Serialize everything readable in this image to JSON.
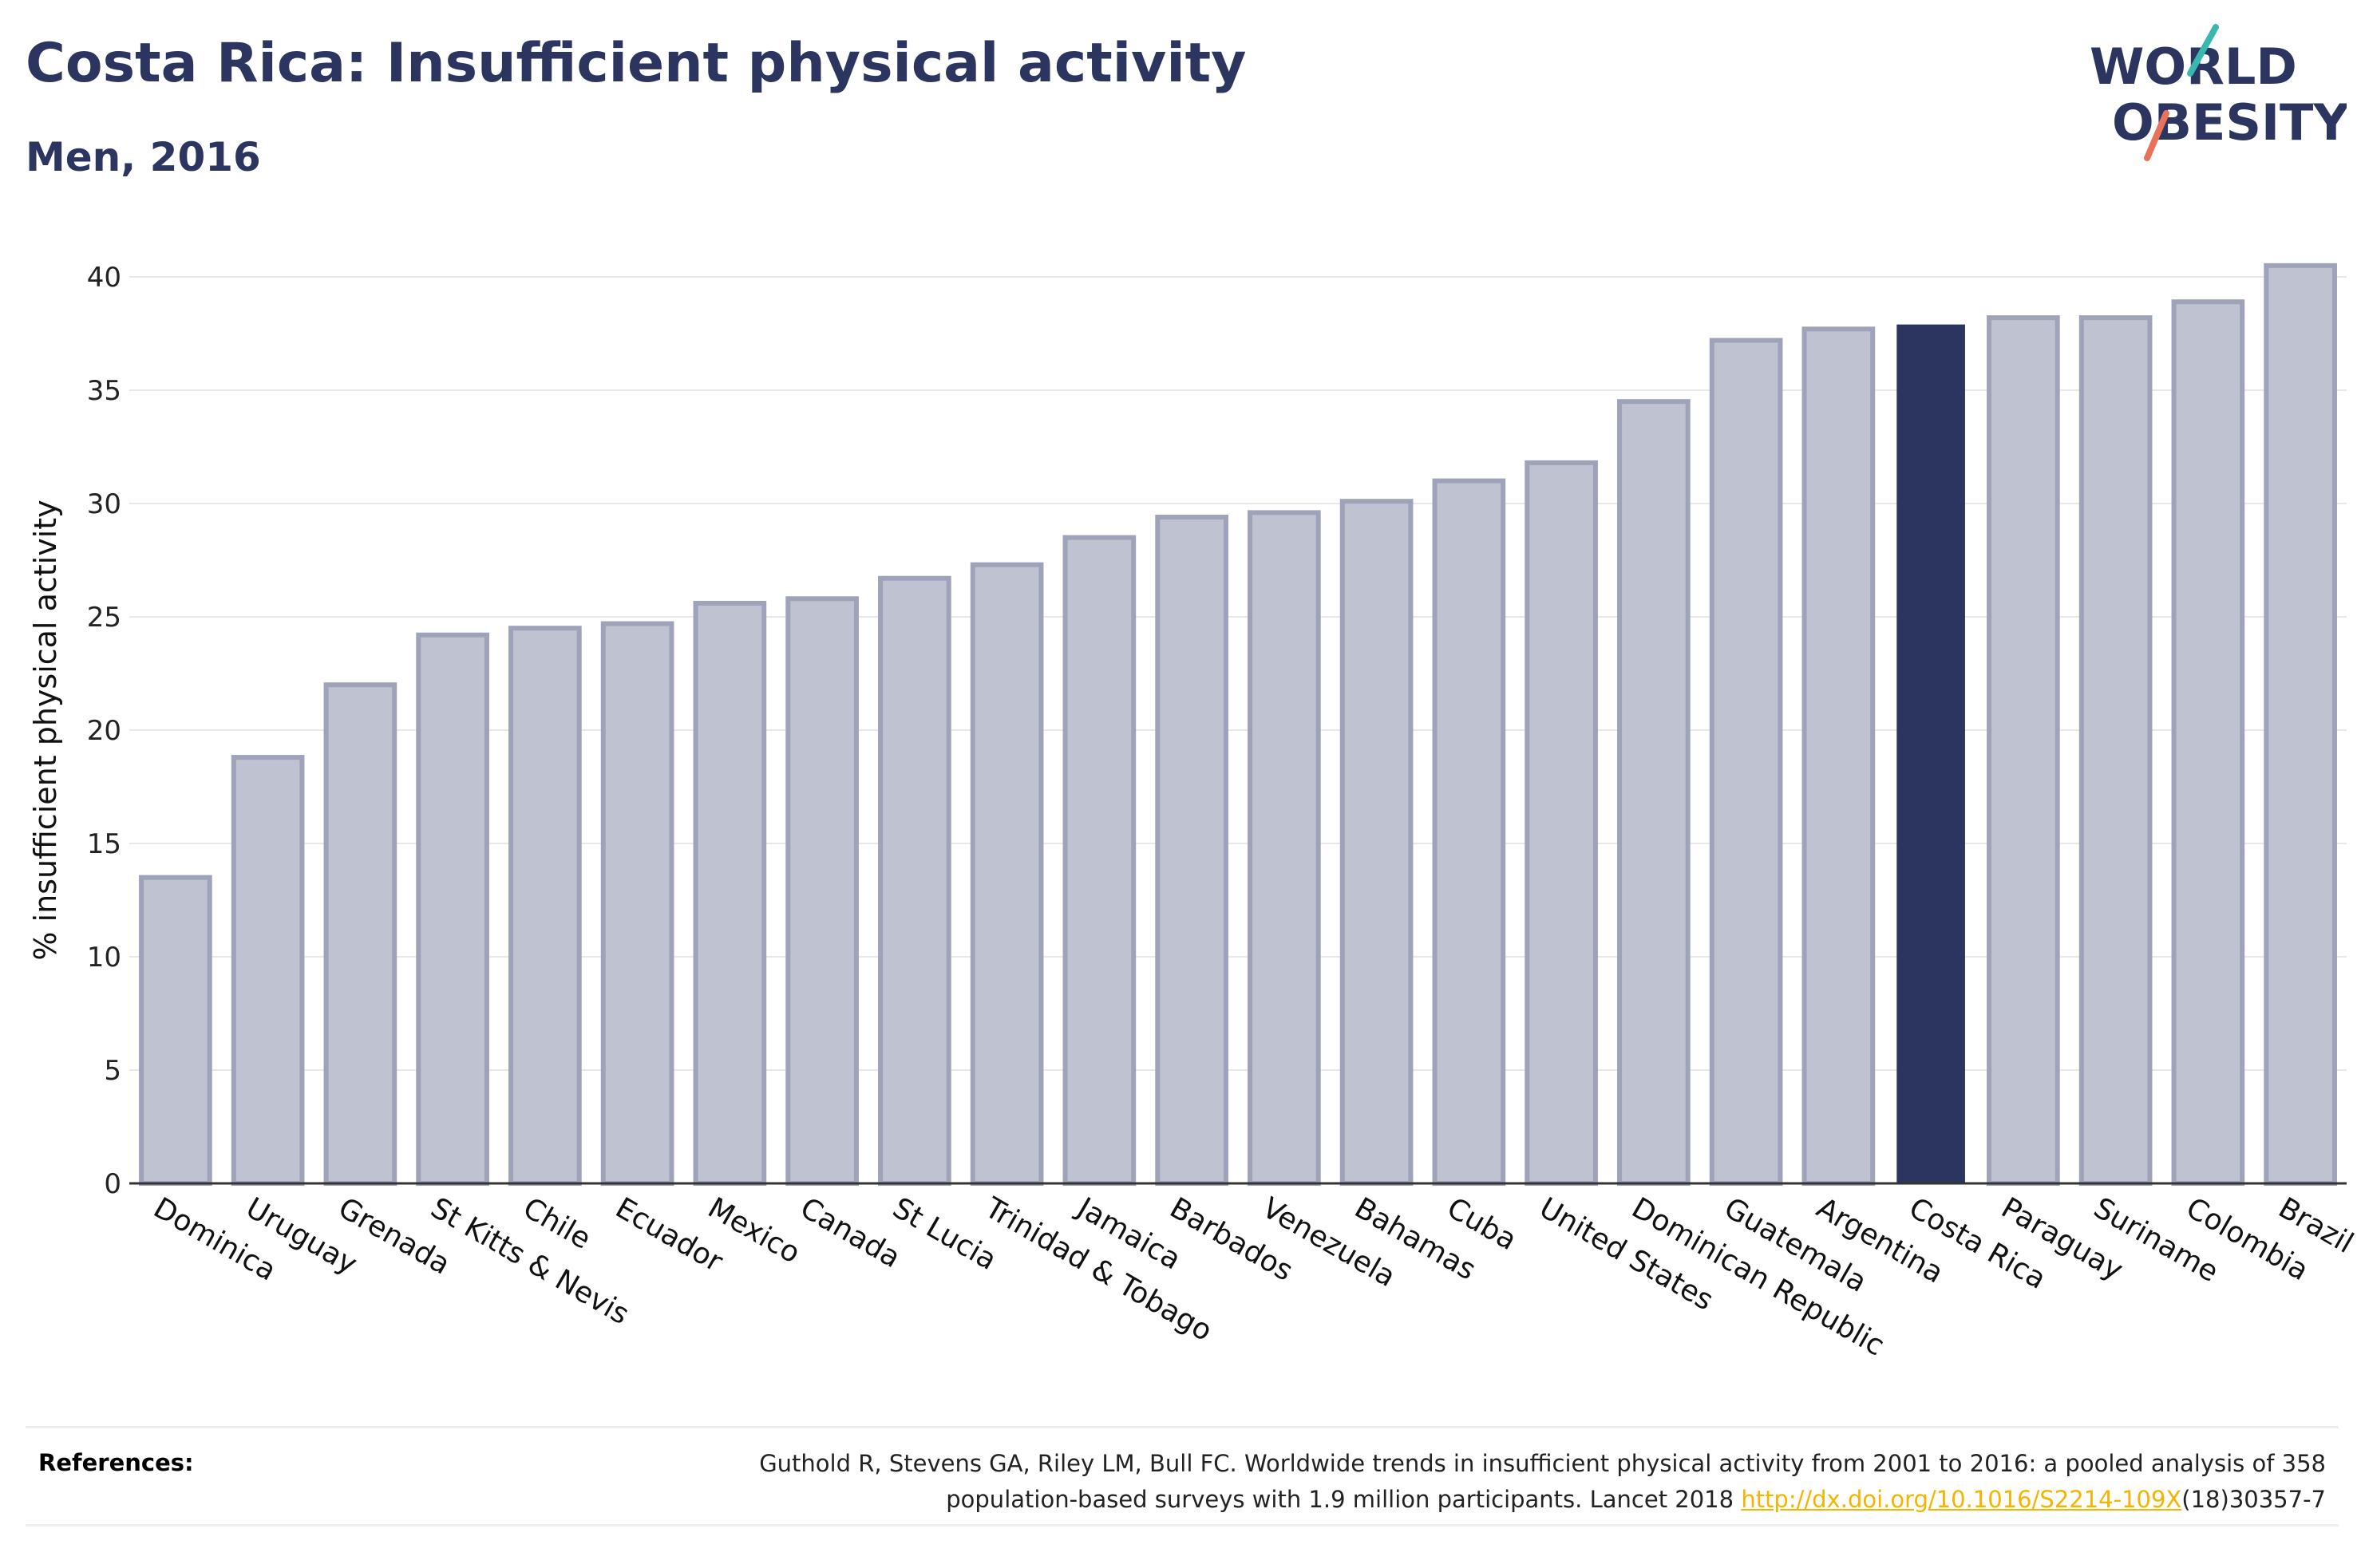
{
  "header": {
    "title": "Costa Rica: Insufficient physical activity",
    "subtitle": "Men, 2016"
  },
  "logo": {
    "line1": "WORLD",
    "line2": "OBESITY"
  },
  "colors": {
    "title": "#2b3560",
    "bar_default_fill": "#bfc2d0",
    "bar_default_stroke": "#9ea3ba",
    "bar_highlight": "#2b3560",
    "grid": "#e8e8e8",
    "link": "#f4b400",
    "logo_teal": "#3ab8b0",
    "logo_coral": "#e8735a"
  },
  "chart_data": {
    "type": "bar",
    "title": "Costa Rica: Insufficient physical activity",
    "subtitle": "Men, 2016",
    "xlabel": "",
    "ylabel": "% insufficient physical activity",
    "ylim": [
      0,
      42
    ],
    "yticks": [
      0,
      5,
      10,
      15,
      20,
      25,
      30,
      35,
      40
    ],
    "grid": true,
    "highlight": "Costa Rica",
    "categories": [
      "Dominica",
      "Uruguay",
      "Grenada",
      "St Kitts & Nevis",
      "Chile",
      "Ecuador",
      "Mexico",
      "Canada",
      "St Lucia",
      "Trinidad & Tobago",
      "Jamaica",
      "Barbados",
      "Venezuela",
      "Bahamas",
      "Cuba",
      "United States",
      "Dominican Republic",
      "Guatemala",
      "Argentina",
      "Costa Rica",
      "Paraguay",
      "Suriname",
      "Colombia",
      "Brazil"
    ],
    "values": [
      13.5,
      18.8,
      22.0,
      24.2,
      24.5,
      24.7,
      25.6,
      25.8,
      26.7,
      27.3,
      28.5,
      29.4,
      29.6,
      30.1,
      31.0,
      31.8,
      34.5,
      37.2,
      37.7,
      37.9,
      38.2,
      38.2,
      38.9,
      40.5
    ]
  },
  "references": {
    "label": "References:",
    "line1": "Guthold R, Stevens GA, Riley LM, Bull FC. Worldwide trends in insufficient physical activity from 2001 to 2016: a pooled analysis of 358",
    "line2_before": "population-based surveys with 1.9 million participants. Lancet 2018 ",
    "link_text": "http://dx.doi.org/10.1016/S2214-109X",
    "line2_after": "(18)30357-7"
  }
}
